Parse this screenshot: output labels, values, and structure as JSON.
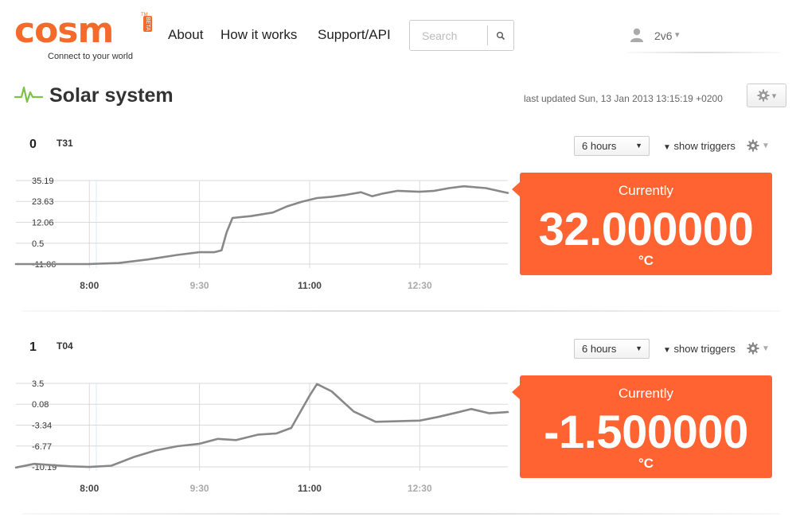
{
  "header": {
    "logo_text": "cosm",
    "logo_badge": "BETA",
    "logo_tm": "TM",
    "tagline": "Connect to your world",
    "nav": [
      {
        "label": "About"
      },
      {
        "label": "How it works"
      },
      {
        "label": "Support/API"
      }
    ],
    "search": {
      "placeholder": "Search",
      "value": ""
    },
    "user": {
      "name": "2v6",
      "caret": "▾"
    }
  },
  "feed": {
    "title": "Solar system",
    "last_updated": "last updated Sun, 13 Jan 2013 13:15:19 +0200",
    "gear_caret": "▾"
  },
  "colors": {
    "accent": "#ff6331",
    "brand": "#f46a2b",
    "pulse_icon": "#7dc242",
    "line": "#888888"
  },
  "icons": {
    "search": "magnifier-icon",
    "user": "user-silhouette-icon",
    "feed": "pulse-icon",
    "settings": "gear-icon"
  },
  "datastreams": [
    {
      "id": "0",
      "name": "T31",
      "range": "6 hours",
      "triggers_label": "show triggers",
      "current_label": "Currently",
      "current_value": "32.000000",
      "unit": "°C",
      "chart_data": {
        "type": "line",
        "y_ticks": [
          35.19,
          23.63,
          12.06,
          0.5,
          -11.06
        ],
        "y_tick_labels": [
          "35.19",
          "23.63",
          "12.06",
          "0.5",
          "-11.06"
        ],
        "ylim": [
          -11.06,
          35.19
        ],
        "x_tick_labels": [
          "8:00",
          "9:30",
          "11:00",
          "12:30"
        ],
        "x_tick_style": [
          "bold",
          "light",
          "bold",
          "light"
        ],
        "x_ticks_hours": [
          8.0,
          9.5,
          11.0,
          12.5
        ],
        "xlim_hours": [
          7.0,
          13.7
        ],
        "series": [
          {
            "x": [
              7.0,
              7.5,
              8.0,
              8.4,
              8.8,
              9.2,
              9.5,
              9.7,
              9.8,
              9.87,
              9.95,
              10.2,
              10.5,
              10.7,
              10.9,
              11.1,
              11.3,
              11.5,
              11.7,
              11.85,
              12.0,
              12.2,
              12.5,
              12.7,
              12.9,
              13.1,
              13.4,
              13.7
            ],
            "y": [
              -11.06,
              -11.06,
              -11.0,
              -10.5,
              -8.5,
              -6.0,
              -4.5,
              -4.5,
              -3.5,
              6.5,
              14.5,
              15.5,
              17.5,
              21.0,
              23.5,
              25.5,
              26.2,
              27.3,
              28.7,
              26.5,
              28.0,
              29.5,
              29.0,
              29.5,
              31.0,
              32.0,
              31.0,
              28.3
            ]
          }
        ]
      }
    },
    {
      "id": "1",
      "name": "T04",
      "range": "6 hours",
      "triggers_label": "show triggers",
      "current_label": "Currently",
      "current_value": "-1.500000",
      "unit": "°C",
      "chart_data": {
        "type": "line",
        "y_ticks": [
          3.5,
          0.08,
          -3.34,
          -6.77,
          -10.19
        ],
        "y_tick_labels": [
          "3.5",
          "0.08",
          "-3.34",
          "-6.77",
          "-10.19"
        ],
        "ylim": [
          -10.19,
          3.5
        ],
        "x_tick_labels": [
          "8:00",
          "9:30",
          "11:00",
          "12:30"
        ],
        "x_tick_style": [
          "bold",
          "light",
          "bold",
          "light"
        ],
        "x_ticks_hours": [
          8.0,
          9.5,
          11.0,
          12.5
        ],
        "xlim_hours": [
          7.0,
          13.7
        ],
        "series": [
          {
            "x": [
              7.0,
              7.25,
              7.5,
              7.75,
              8.0,
              8.3,
              8.6,
              8.9,
              9.2,
              9.5,
              9.75,
              10.0,
              10.3,
              10.55,
              10.75,
              11.0,
              11.1,
              11.3,
              11.6,
              11.9,
              12.2,
              12.5,
              12.75,
              13.0,
              13.2,
              13.45,
              13.7
            ],
            "y": [
              -10.3,
              -9.7,
              -9.9,
              -10.1,
              -10.2,
              -10.0,
              -8.6,
              -7.5,
              -6.8,
              -6.4,
              -5.6,
              -5.8,
              -4.9,
              -4.7,
              -3.8,
              1.5,
              3.4,
              2.2,
              -1.1,
              -2.8,
              -2.7,
              -2.6,
              -2.0,
              -1.3,
              -0.7,
              -1.4,
              -1.2
            ]
          }
        ]
      }
    }
  ]
}
